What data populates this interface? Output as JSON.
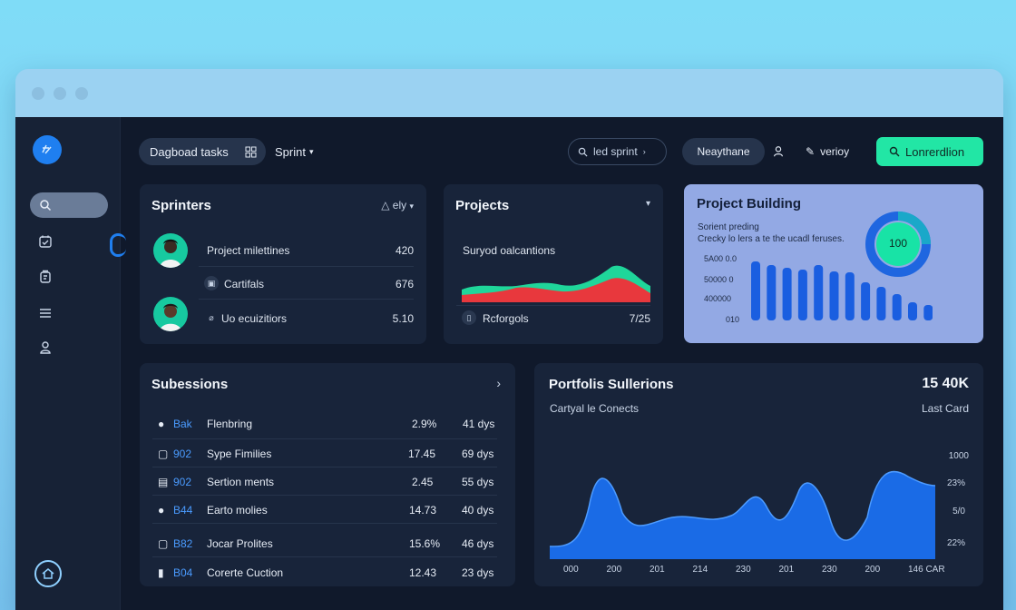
{
  "header": {
    "tab_label": "Dagboad tasks",
    "sprint_label": "Sprint",
    "search_placeholder": "led sprint",
    "user_name": "Neaythane",
    "verify_label": "verioy",
    "cta_label": "Lonrerdlion"
  },
  "sprinters": {
    "title": "Sprinters",
    "filter_label": "ely",
    "rows": [
      {
        "label": "Project milettines",
        "value": "420"
      },
      {
        "label": "Cartifals",
        "value": "676"
      },
      {
        "label": "Uo ecuizitiors",
        "value": "5.10"
      }
    ]
  },
  "projects": {
    "title": "Projects",
    "subtitle": "Suryod oalcantions",
    "footer_label": "Rcforgols",
    "footer_value": "7/25"
  },
  "building": {
    "title": "Project Building",
    "line1": "Sorient preding",
    "line2": "Crecky lo lers a te the ucadl feruses.",
    "donut_value": "100",
    "y_ticks": [
      "5A00 0.0",
      "50000 0",
      "400000",
      "010"
    ],
    "bars": [
      0.95,
      0.9,
      0.85,
      0.82,
      0.9,
      0.8,
      0.78,
      0.62,
      0.55,
      0.42,
      0.3,
      0.25
    ]
  },
  "subsessions": {
    "title": "Subessions",
    "rows": [
      {
        "code": "Bak",
        "name": "Flenbring",
        "pct": "2.9%",
        "dur": "41 dys"
      },
      {
        "code": "902",
        "name": "Sype Fimilies",
        "pct": "17.45",
        "dur": "69 dys"
      },
      {
        "code": "902",
        "name": "Sertion ments",
        "pct": "2.45",
        "dur": "55 dys"
      },
      {
        "code": "B44",
        "name": "Earto molies",
        "pct": "14.73",
        "dur": "40 dys"
      },
      {
        "code": "B82",
        "name": "Jocar Prolites",
        "pct": "15.6%",
        "dur": "46 dys"
      },
      {
        "code": "B04",
        "name": "Corerte Cuction",
        "pct": "12.43",
        "dur": "23 dys"
      }
    ]
  },
  "portfolio": {
    "title": "Portfolis Sullerions",
    "value": "15 40K",
    "subtitle": "Cartyal le Conects",
    "right_label": "Last Card",
    "y_ticks": [
      "1000",
      "23%",
      "5/0",
      "22%"
    ],
    "x_ticks": [
      "000",
      "200",
      "201",
      "214",
      "230",
      "201",
      "230",
      "200",
      "146 CAR"
    ]
  },
  "colors": {
    "accent": "#1f7ff0",
    "cta": "#22e6a5",
    "card": "#18243a",
    "bg": "#10192b"
  }
}
